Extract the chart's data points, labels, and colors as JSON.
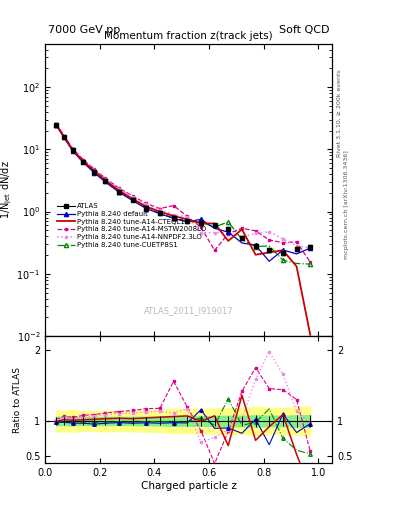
{
  "title_main": "Momentum fraction z(track jets)",
  "header_left": "7000 GeV pp",
  "header_right": "Soft QCD",
  "ylabel_main": "1/N$_\\mathregular{jet}$ dN/dz",
  "ylabel_ratio": "Ratio to ATLAS",
  "xlabel": "Charged particle z",
  "right_label_top": "Rivet 3.1.10, ≥ 200k events",
  "right_label_bot": "mcplots.cern.ch [arXiv:1306.3436]",
  "watermark": "ATLAS_2011_I919017",
  "ylim_main": [
    0.01,
    500
  ],
  "ylim_ratio": [
    0.4,
    2.2
  ],
  "xlim": [
    0.0,
    1.05
  ],
  "x_data": [
    0.04,
    0.07,
    0.1,
    0.14,
    0.18,
    0.22,
    0.27,
    0.32,
    0.37,
    0.42,
    0.47,
    0.52,
    0.57,
    0.62,
    0.67,
    0.72,
    0.77,
    0.82,
    0.87,
    0.92,
    0.97
  ],
  "y_atlas": [
    25.0,
    15.5,
    9.8,
    6.3,
    4.4,
    3.1,
    2.1,
    1.55,
    1.15,
    0.95,
    0.8,
    0.7,
    0.65,
    0.6,
    0.52,
    0.38,
    0.28,
    0.24,
    0.22,
    0.25,
    0.27
  ],
  "y_atlas_err": [
    1.5,
    0.9,
    0.6,
    0.35,
    0.25,
    0.18,
    0.12,
    0.09,
    0.07,
    0.06,
    0.055,
    0.048,
    0.045,
    0.042,
    0.038,
    0.028,
    0.022,
    0.018,
    0.016,
    0.02,
    0.022
  ],
  "y_default": [
    24.5,
    15.2,
    9.5,
    6.1,
    4.2,
    3.0,
    2.05,
    1.5,
    1.12,
    0.92,
    0.78,
    0.68,
    0.63,
    0.58,
    0.5,
    0.36,
    0.26,
    0.22,
    0.2,
    0.23,
    0.25
  ],
  "y_cteq": [
    24.8,
    15.8,
    9.9,
    6.4,
    4.5,
    3.2,
    2.18,
    1.6,
    1.2,
    1.0,
    0.85,
    0.75,
    0.7,
    0.65,
    0.55,
    0.4,
    0.3,
    0.26,
    0.22,
    0.17,
    0.013
  ],
  "y_mstw": [
    25.5,
    16.5,
    10.3,
    6.8,
    4.8,
    3.45,
    2.38,
    1.78,
    1.35,
    1.12,
    0.92,
    0.77,
    0.55,
    0.38,
    0.47,
    0.58,
    0.5,
    0.4,
    0.32,
    0.36,
    0.21
  ],
  "y_nnpdf": [
    25.2,
    16.2,
    10.1,
    6.6,
    4.7,
    3.38,
    2.32,
    1.72,
    1.3,
    1.08,
    0.88,
    0.74,
    0.58,
    0.4,
    0.5,
    0.6,
    0.52,
    0.42,
    0.34,
    0.38,
    0.23
  ],
  "y_cuetp": [
    24.6,
    15.3,
    9.6,
    6.2,
    4.3,
    3.05,
    2.08,
    1.52,
    1.14,
    0.94,
    0.79,
    0.69,
    0.64,
    0.59,
    0.51,
    0.37,
    0.27,
    0.23,
    0.19,
    0.16,
    0.14
  ],
  "color_atlas": "#000000",
  "color_default": "#0000cc",
  "color_cteq": "#cc0000",
  "color_mstw": "#dd0088",
  "color_nnpdf": "#ee88ee",
  "color_cuetp": "#008800",
  "ratio_band_yellow": "#ffff88",
  "ratio_band_green": "#88ee88",
  "ratio_line_color": "#00cc00",
  "legend_labels": [
    "ATLAS",
    "Pythia 8.240 default",
    "Pythia 8.240 tune-A14-CTEQL1",
    "Pythia 8.240 tune-A14-MSTW2008LO",
    "Pythia 8.240 tune-A14-NNPDF2.3LO",
    "Pythia 8.240 tune-CUETP8S1"
  ]
}
